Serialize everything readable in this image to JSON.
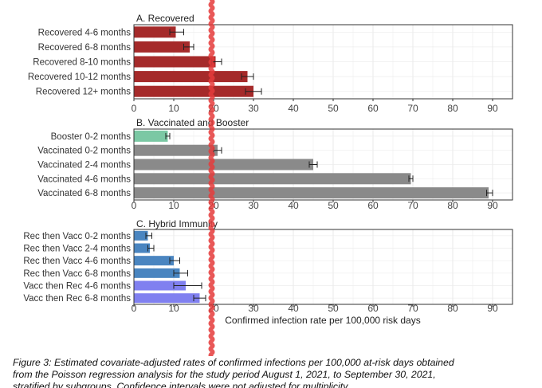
{
  "chart_data": {
    "type": "bar",
    "orientation": "horizontal",
    "xlabel": "Confirmed infection rate per 100,000 risk days",
    "xlim": [
      0,
      95
    ],
    "xticks": [
      0,
      10,
      20,
      30,
      40,
      50,
      60,
      70,
      80,
      90
    ],
    "grid": true,
    "panels": [
      {
        "title": "A. Recovered",
        "bars": [
          {
            "label": "Recovered 4-6 months",
            "value": 10.5,
            "ci": [
              9.0,
              12.5
            ],
            "color": "#a52a2a"
          },
          {
            "label": "Recovered 6-8 months",
            "value": 14.0,
            "ci": [
              12.5,
              15.0
            ],
            "color": "#a52a2a"
          },
          {
            "label": "Recovered 8-10 months",
            "value": 20.5,
            "ci": [
              19.5,
              22.0
            ],
            "color": "#a52a2a"
          },
          {
            "label": "Recovered 10-12 months",
            "value": 28.5,
            "ci": [
              27.0,
              30.0
            ],
            "color": "#a52a2a"
          },
          {
            "label": "Recovered 12+ months",
            "value": 30.0,
            "ci": [
              28.0,
              32.0
            ],
            "color": "#a52a2a"
          }
        ]
      },
      {
        "title": "B. Vaccinated and Booster",
        "bars": [
          {
            "label": "Booster 0-2 months",
            "value": 8.5,
            "ci": [
              8.0,
              9.0
            ],
            "color": "#7bc8a4"
          },
          {
            "label": "Vaccinated 0-2 months",
            "value": 21.0,
            "ci": [
              20.0,
              22.0
            ],
            "color": "#8a8a8a"
          },
          {
            "label": "Vaccinated 2-4 months",
            "value": 45.0,
            "ci": [
              44.0,
              46.0
            ],
            "color": "#8a8a8a"
          },
          {
            "label": "Vaccinated 4-6 months",
            "value": 69.5,
            "ci": [
              69.0,
              70.0
            ],
            "color": "#8a8a8a"
          },
          {
            "label": "Vaccinated 6-8 months",
            "value": 89.0,
            "ci": [
              88.5,
              90.0
            ],
            "color": "#8a8a8a"
          }
        ]
      },
      {
        "title": "C. Hybrid Immunity",
        "bars": [
          {
            "label": "Rec then Vacc 0-2 months",
            "value": 3.5,
            "ci": [
              3.0,
              4.5
            ],
            "color": "#4a85c0"
          },
          {
            "label": "Rec then Vacc 2-4 months",
            "value": 4.0,
            "ci": [
              3.5,
              5.0
            ],
            "color": "#4a85c0"
          },
          {
            "label": "Rec then Vacc 4-6 months",
            "value": 10.0,
            "ci": [
              9.0,
              11.5
            ],
            "color": "#4a85c0"
          },
          {
            "label": "Rec then Vacc 6-8 months",
            "value": 11.5,
            "ci": [
              10.0,
              13.5
            ],
            "color": "#4a85c0"
          },
          {
            "label": "Vacc then Rec 4-6 months",
            "value": 13.0,
            "ci": [
              10.0,
              17.0
            ],
            "color": "#8080f0"
          },
          {
            "label": "Vacc then Rec 6-8 months",
            "value": 16.5,
            "ci": [
              15.0,
              18.0
            ],
            "color": "#8080f0"
          }
        ]
      }
    ],
    "annotation": {
      "type": "vertical-squiggly-line",
      "x": 19.5,
      "color": "#e53b3b"
    }
  },
  "caption": {
    "line1": "Figure 3: Estimated covariate-adjusted rates of confirmed infections per 100,000 at-risk days obtained",
    "line2": "from the Poisson regression analysis for the study period August 1, 2021, to September 30, 2021,",
    "line3": "stratified by subgroups. Confidence intervals were not adjusted for multiplicity."
  }
}
